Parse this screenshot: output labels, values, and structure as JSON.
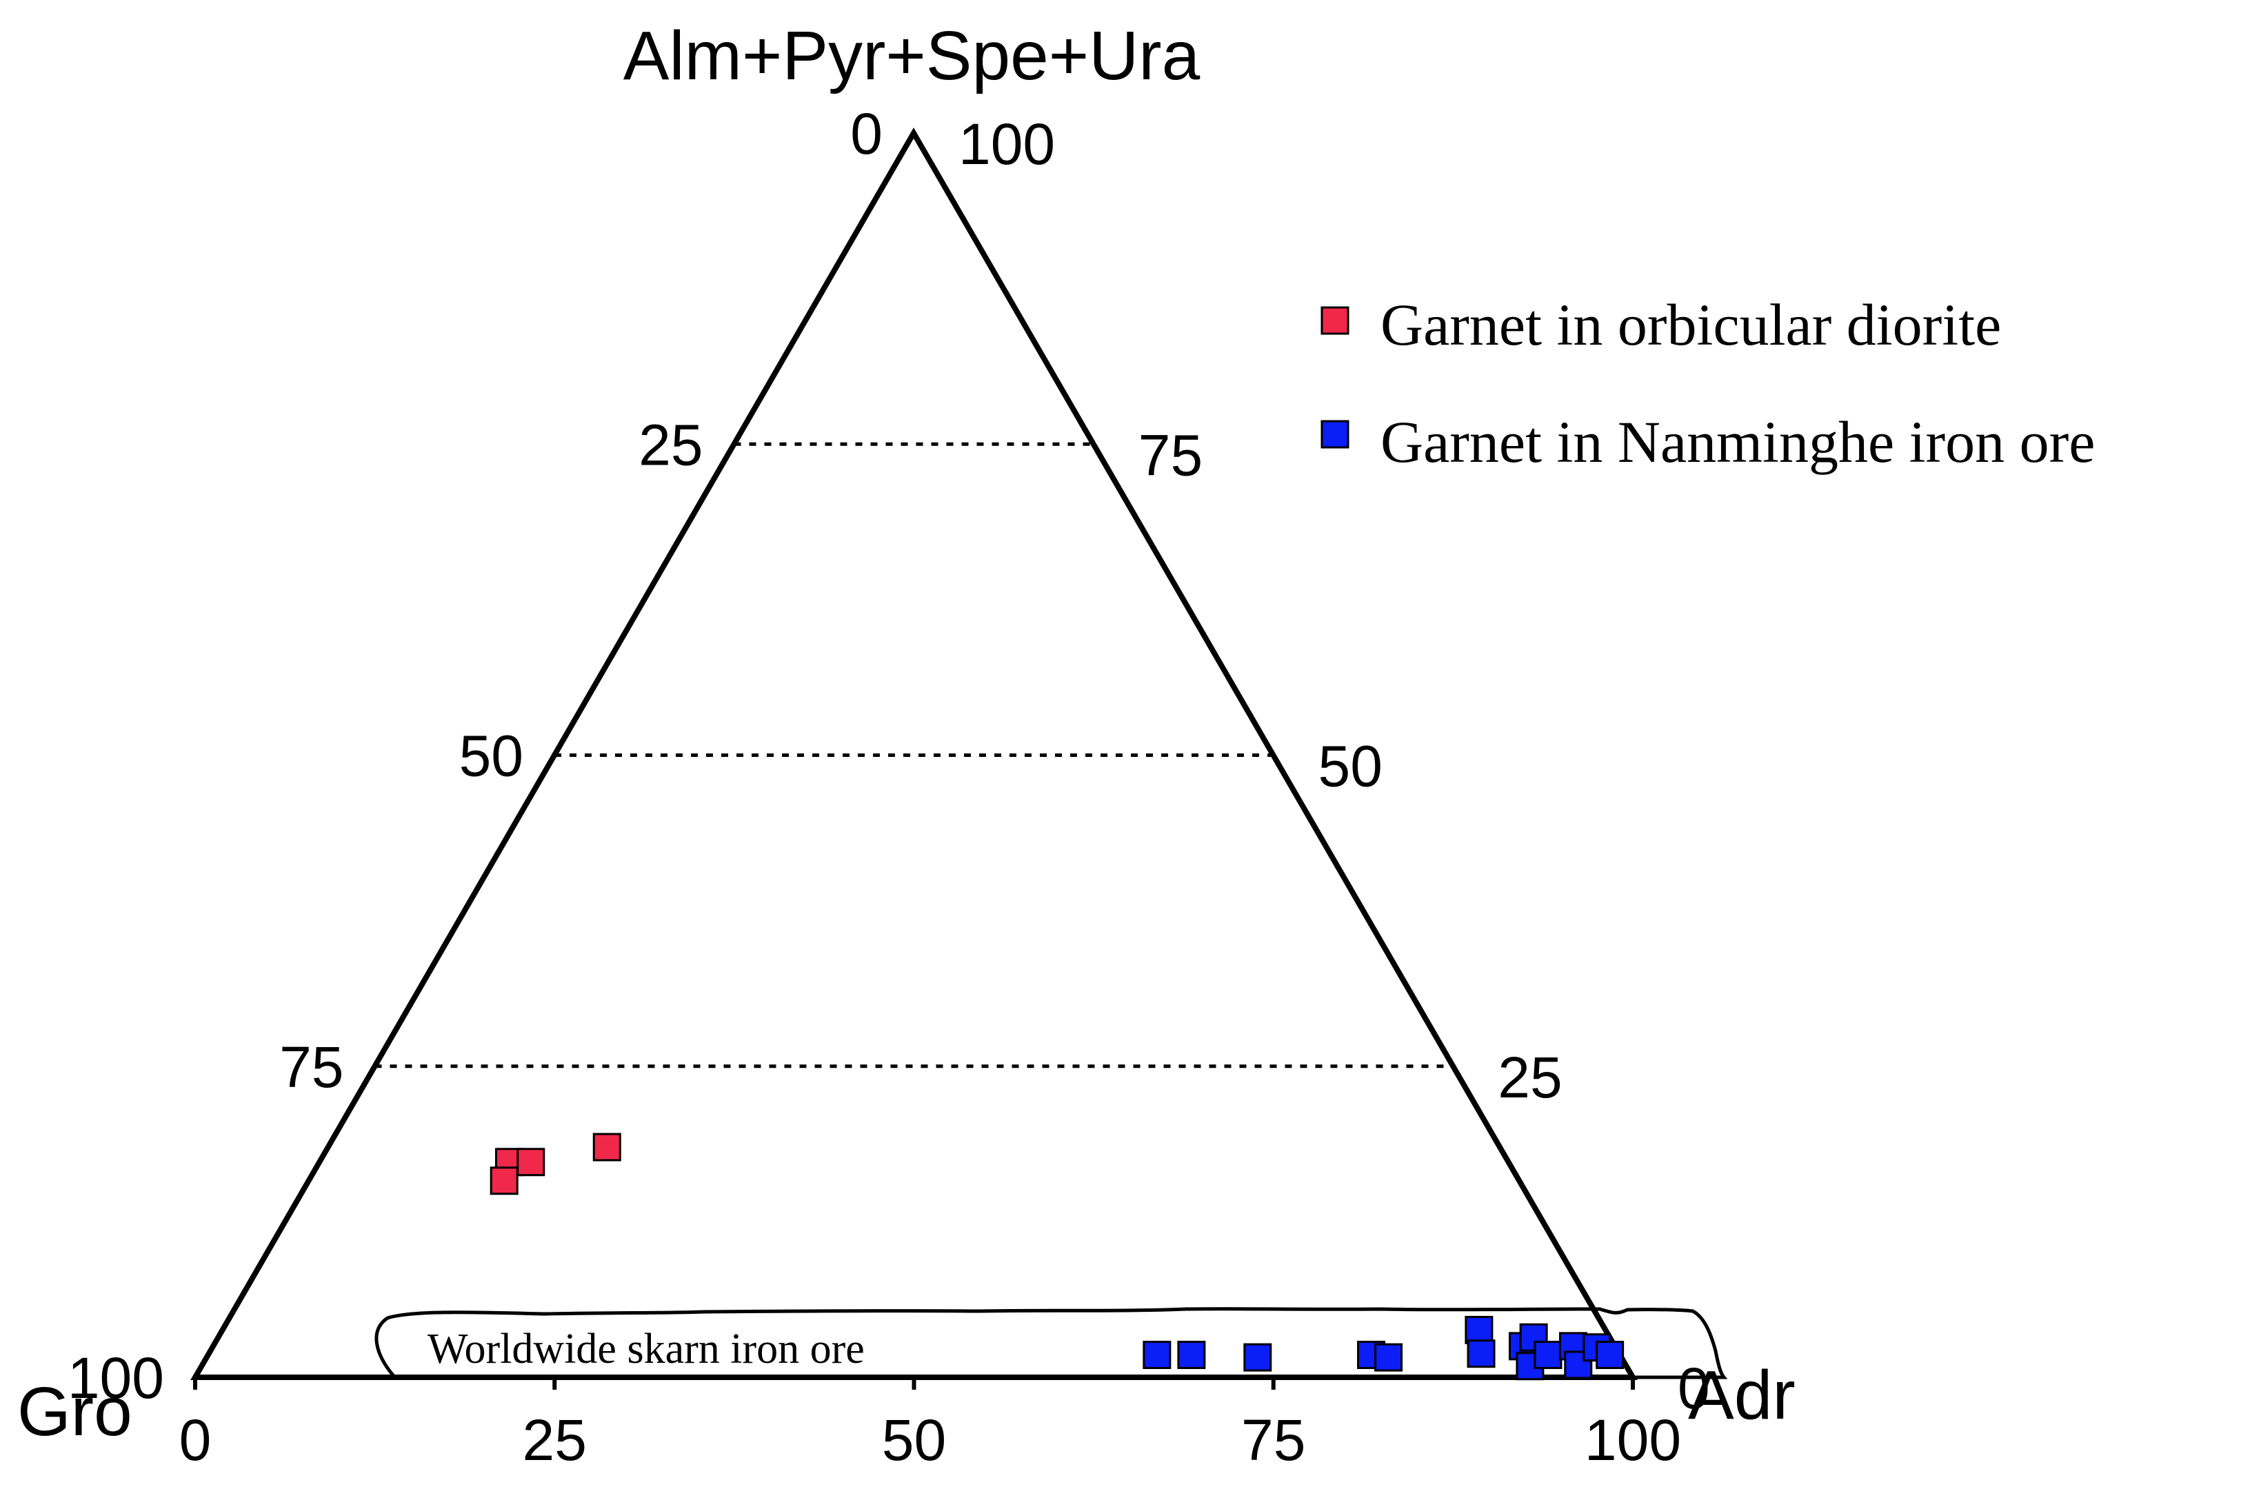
{
  "chart_data": {
    "type": "scatter",
    "subtype": "ternary",
    "apex_labels": {
      "top": "Alm+Pyr+Spe+Ura",
      "left": "Gro",
      "right": "Adr"
    },
    "bottom_ticks": [
      "0",
      "25",
      "50",
      "75",
      "100"
    ],
    "left_ticks": [
      "0",
      "25",
      "50",
      "75",
      "100"
    ],
    "right_ticks": [
      "100",
      "75",
      "50",
      "25",
      "0"
    ],
    "gridlines": [
      25,
      50,
      75
    ],
    "grid_style": "dotted horizontal lines",
    "field_label": "Worldwide skarn iron ore",
    "legend_position": "top-right",
    "series": [
      {
        "name": "Garnet in orbicular diorite",
        "color": "#f0284a",
        "marker": "square",
        "points": [
          {
            "adr": 13.2,
            "gro": 69.5,
            "alm": 17.3
          },
          {
            "adr": 14.7,
            "gro": 68.0,
            "alm": 17.3
          },
          {
            "adr": 13.6,
            "gro": 70.6,
            "alm": 15.8
          },
          {
            "adr": 19.4,
            "gro": 62.1,
            "alm": 18.5
          }
        ]
      },
      {
        "name": "Garnet in Nanminghe iron ore",
        "color": "#0a1ef5",
        "marker": "square",
        "points": [
          {
            "adr": 66.0,
            "gro": 32.2,
            "alm": 1.8
          },
          {
            "adr": 68.4,
            "gro": 29.8,
            "alm": 1.8
          },
          {
            "adr": 73.1,
            "gro": 25.3,
            "alm": 1.6
          },
          {
            "adr": 80.9,
            "gro": 17.3,
            "alm": 1.8
          },
          {
            "adr": 82.2,
            "gro": 16.2,
            "alm": 1.6
          },
          {
            "adr": 87.4,
            "gro": 8.8,
            "alm": 3.8
          },
          {
            "adr": 88.5,
            "gro": 9.6,
            "alm": 1.9
          },
          {
            "adr": 91.1,
            "gro": 6.4,
            "alm": 2.5
          },
          {
            "adr": 91.5,
            "gro": 5.3,
            "alm": 3.2
          },
          {
            "adr": 92.4,
            "gro": 6.7,
            "alm": 0.9
          },
          {
            "adr": 93.2,
            "gro": 5.0,
            "alm": 1.8
          },
          {
            "adr": 94.6,
            "gro": 2.9,
            "alm": 2.5
          },
          {
            "adr": 95.7,
            "gro": 3.3,
            "alm": 1.0
          },
          {
            "adr": 96.3,
            "gro": 1.3,
            "alm": 2.4
          },
          {
            "adr": 97.5,
            "gro": 0.7,
            "alm": 1.8
          }
        ]
      }
    ]
  }
}
